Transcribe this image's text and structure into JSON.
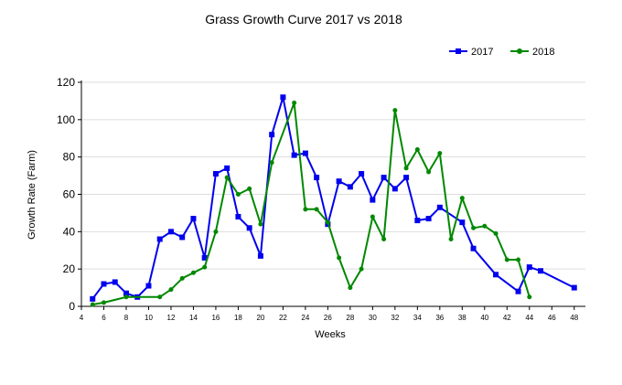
{
  "chart_data": {
    "type": "line",
    "title": "Grass Growth Curve 2017 vs 2018",
    "xlabel": "Weeks",
    "ylabel": "Growth Rate (Farm)",
    "xlim": [
      4,
      49
    ],
    "ylim": [
      0,
      120
    ],
    "xticks": [
      4,
      6,
      8,
      10,
      12,
      14,
      16,
      18,
      20,
      22,
      24,
      26,
      28,
      30,
      32,
      34,
      36,
      38,
      40,
      42,
      44,
      46,
      48
    ],
    "yticks": [
      0,
      20,
      40,
      60,
      80,
      100,
      120
    ],
    "grid": "horizontal",
    "legend": "top-right",
    "series": [
      {
        "name": "2017",
        "color": "#0000ee",
        "marker": "square",
        "x": [
          5,
          6,
          7,
          8,
          9,
          10,
          11,
          12,
          13,
          14,
          15,
          16,
          17,
          18,
          19,
          20,
          21,
          22,
          23,
          24,
          25,
          26,
          27,
          28,
          29,
          30,
          31,
          32,
          33,
          34,
          35,
          36,
          38,
          39,
          41,
          43,
          44,
          45,
          48
        ],
        "y": [
          4,
          12,
          13,
          7,
          5,
          11,
          36,
          40,
          37,
          47,
          26,
          71,
          74,
          48,
          42,
          27,
          92,
          112,
          81,
          82,
          69,
          44,
          67,
          64,
          71,
          57,
          69,
          63,
          69,
          46,
          47,
          53,
          45,
          31,
          17,
          8,
          21,
          19,
          10
        ]
      },
      {
        "name": "2018",
        "color": "#008800",
        "marker": "circle",
        "x": [
          5,
          6,
          8,
          11,
          12,
          13,
          14,
          15,
          16,
          17,
          18,
          19,
          20,
          21,
          23,
          24,
          25,
          26,
          27,
          28,
          29,
          30,
          31,
          32,
          33,
          34,
          35,
          36,
          37,
          38,
          39,
          40,
          41,
          42,
          43,
          44
        ],
        "y": [
          1,
          2,
          5,
          5,
          9,
          15,
          18,
          21,
          40,
          69,
          60,
          63,
          44,
          77,
          109,
          52,
          52,
          45,
          26,
          10,
          20,
          48,
          36,
          105,
          74,
          84,
          72,
          82,
          36,
          58,
          42,
          43,
          39,
          25,
          25,
          5
        ]
      }
    ]
  }
}
